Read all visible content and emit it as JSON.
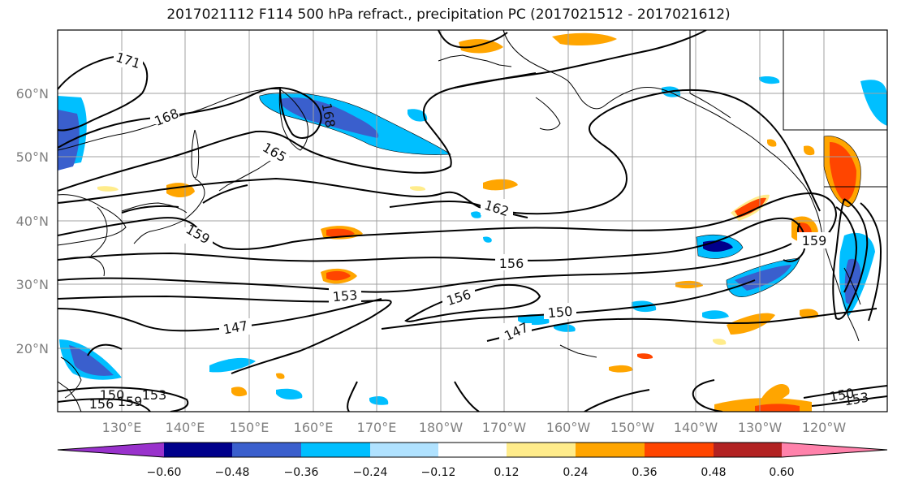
{
  "title": "2017021112 F114 500 hPa refract., precipitation PC (2017021512 - 2017021612)",
  "lat_labels": [
    "60°N",
    "50°N",
    "40°N",
    "30°N",
    "20°N"
  ],
  "lon_labels": [
    "130°E",
    "140°E",
    "150°E",
    "160°E",
    "170°E",
    "180°W",
    "170°W",
    "160°W",
    "150°W",
    "140°W",
    "130°W",
    "120°W"
  ],
  "contour_labels": [
    "171",
    "168",
    "165",
    "168",
    "162",
    "159",
    "159",
    "156",
    "156",
    "153",
    "150",
    "147",
    "147",
    "150",
    "153",
    "150",
    "153",
    "156",
    "159"
  ],
  "colorbar": {
    "ticks": [
      "−0.60",
      "−0.48",
      "−0.36",
      "−0.24",
      "−0.12",
      "0.12",
      "0.24",
      "0.36",
      "0.48",
      "0.60"
    ],
    "colors": [
      "#9932cc",
      "#00008b",
      "#3a5fcd",
      "#00bfff",
      "#b0e2ff",
      "#ffffff",
      "#ffec8b",
      "#ffa500",
      "#ff4500",
      "#b22222",
      "#ff82ab"
    ]
  }
}
